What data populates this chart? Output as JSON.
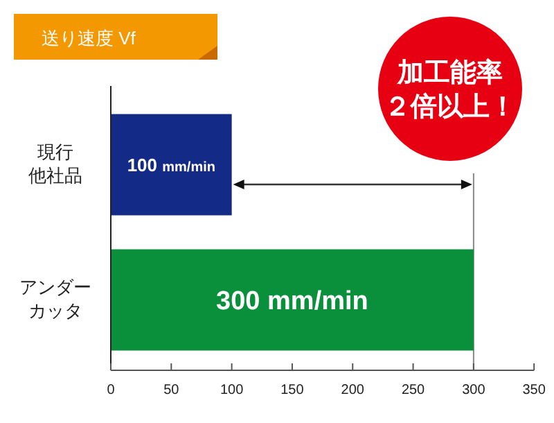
{
  "chart_data": {
    "type": "bar",
    "orientation": "horizontal",
    "title": "送り速度 Vf",
    "categories": [
      "現行他社品",
      "アンダーカッタ"
    ],
    "values": [
      100,
      300
    ],
    "colors": [
      "#142a87",
      "#0a8f3a"
    ],
    "value_labels": [
      "100 mm/min",
      "300 mm/min"
    ],
    "xlim": [
      0,
      350
    ],
    "xticks": [
      0,
      50,
      100,
      150,
      200,
      250,
      300,
      350
    ],
    "ref_lines": [
      {
        "axis": "x",
        "value": 300,
        "color": "#888888"
      }
    ],
    "annotations": [
      "加工能率２倍以上！"
    ]
  }
}
